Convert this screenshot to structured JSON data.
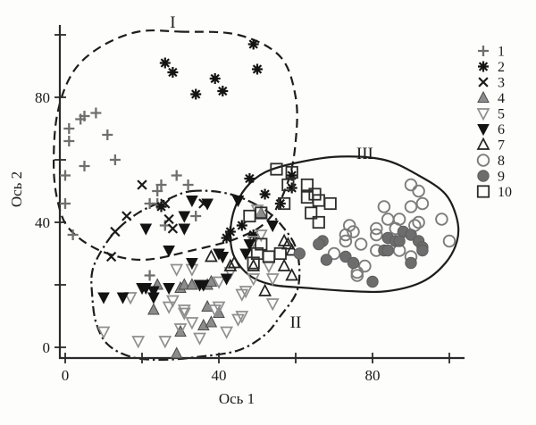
{
  "chart_data": {
    "type": "scatter",
    "title": "",
    "xlabel": "Ось 1",
    "ylabel": "Ось 2",
    "xlim": [
      -1.5,
      105
    ],
    "ylim": [
      -4,
      106
    ],
    "grid": false,
    "legend_position": "right-outside",
    "x_ticks": {
      "major": [
        0,
        40,
        80
      ],
      "minor": [
        20,
        60,
        100
      ]
    },
    "y_ticks": {
      "major": [
        0,
        40,
        80
      ],
      "minor": [
        20,
        60,
        100
      ]
    },
    "series": [
      {
        "name": "1",
        "marker": "plus",
        "color": "#6f6f6f",
        "points": [
          [
            4,
            73
          ],
          [
            5,
            74
          ],
          [
            8,
            75
          ],
          [
            1,
            70
          ],
          [
            1,
            66
          ],
          [
            11,
            68
          ],
          [
            13,
            60
          ],
          [
            5,
            58
          ],
          [
            0,
            55
          ],
          [
            0,
            46
          ],
          [
            2,
            36
          ],
          [
            25,
            52
          ],
          [
            24,
            50
          ],
          [
            29,
            55
          ],
          [
            32,
            52
          ],
          [
            22,
            46
          ],
          [
            26,
            39
          ],
          [
            34,
            42
          ],
          [
            22,
            23
          ],
          [
            24,
            46
          ]
        ]
      },
      {
        "name": "2",
        "marker": "asterisk",
        "color": "#141414",
        "points": [
          [
            49,
            97
          ],
          [
            26,
            91
          ],
          [
            28,
            88
          ],
          [
            39,
            86
          ],
          [
            34,
            81
          ],
          [
            41,
            82
          ],
          [
            50,
            89
          ],
          [
            25,
            45
          ],
          [
            48,
            54
          ],
          [
            52,
            49
          ],
          [
            59,
            55
          ],
          [
            59,
            51
          ],
          [
            56,
            46
          ],
          [
            46,
            39
          ],
          [
            49,
            36
          ],
          [
            43,
            37
          ],
          [
            42,
            35
          ]
        ]
      },
      {
        "name": "3",
        "marker": "x",
        "color": "#1a1a1a",
        "points": [
          [
            20,
            52
          ],
          [
            16,
            42
          ],
          [
            13,
            37
          ],
          [
            26,
            46
          ],
          [
            27,
            41
          ],
          [
            28,
            38
          ],
          [
            12,
            29
          ],
          [
            36,
            46
          ]
        ]
      },
      {
        "name": "4",
        "marker": "triangle-up-filled",
        "color": "#8c8c8c",
        "points": [
          [
            24,
            20
          ],
          [
            30,
            19
          ],
          [
            31,
            20
          ],
          [
            33,
            20
          ],
          [
            37,
            20
          ],
          [
            38,
            21
          ],
          [
            23,
            12
          ],
          [
            37,
            13
          ],
          [
            40,
            11
          ],
          [
            36,
            7
          ],
          [
            38,
            8
          ],
          [
            30,
            5
          ],
          [
            29,
            -2
          ],
          [
            51,
            43
          ]
        ]
      },
      {
        "name": "5",
        "marker": "triangle-down-open",
        "color": "#8f8f8f",
        "points": [
          [
            29,
            25
          ],
          [
            33,
            25
          ],
          [
            40,
            21
          ],
          [
            43,
            24
          ],
          [
            47,
            18
          ],
          [
            46,
            17
          ],
          [
            17,
            16
          ],
          [
            28,
            15
          ],
          [
            31,
            12
          ],
          [
            40,
            13
          ],
          [
            46,
            10
          ],
          [
            30,
            6
          ],
          [
            35,
            3
          ],
          [
            26,
            2
          ],
          [
            10,
            5
          ],
          [
            27,
            13
          ],
          [
            33,
            8
          ],
          [
            39,
            12
          ],
          [
            42,
            5
          ],
          [
            19,
            2
          ],
          [
            49,
            22
          ],
          [
            54,
            22
          ],
          [
            54,
            14
          ],
          [
            45,
            9
          ],
          [
            31,
            11
          ],
          [
            50,
            44
          ],
          [
            51,
            36
          ],
          [
            49,
            34
          ],
          [
            53,
            26
          ]
        ]
      },
      {
        "name": "6",
        "marker": "triangle-down-filled",
        "color": "#131313",
        "points": [
          [
            33,
            47
          ],
          [
            37,
            46
          ],
          [
            31,
            42
          ],
          [
            31,
            38
          ],
          [
            21,
            38
          ],
          [
            27,
            31
          ],
          [
            40,
            30
          ],
          [
            41,
            29
          ],
          [
            33,
            27
          ],
          [
            42,
            22
          ],
          [
            20,
            19
          ],
          [
            21,
            19
          ],
          [
            23,
            18
          ],
          [
            23,
            16
          ],
          [
            15,
            16
          ],
          [
            27,
            19
          ],
          [
            35,
            20
          ],
          [
            36,
            20
          ],
          [
            45,
            47
          ],
          [
            54,
            39
          ],
          [
            48,
            33
          ],
          [
            47,
            30
          ],
          [
            10,
            16
          ]
        ]
      },
      {
        "name": "7",
        "marker": "triangle-up-open",
        "color": "#222222",
        "points": [
          [
            38,
            29
          ],
          [
            44,
            27
          ],
          [
            57,
            34
          ],
          [
            59,
            31
          ],
          [
            58,
            33
          ],
          [
            59,
            23
          ],
          [
            52,
            18
          ],
          [
            43,
            26
          ],
          [
            49,
            26
          ],
          [
            57,
            26
          ]
        ]
      },
      {
        "name": "8",
        "marker": "circle-open",
        "color": "#7c7c7c",
        "points": [
          [
            90,
            52
          ],
          [
            92,
            50
          ],
          [
            90,
            45
          ],
          [
            93,
            46
          ],
          [
            83,
            45
          ],
          [
            84,
            41
          ],
          [
            87,
            41
          ],
          [
            91,
            39
          ],
          [
            92,
            40
          ],
          [
            98,
            41
          ],
          [
            81,
            38
          ],
          [
            81,
            36
          ],
          [
            86,
            38
          ],
          [
            74,
            39
          ],
          [
            73,
            36
          ],
          [
            75,
            37
          ],
          [
            73,
            34
          ],
          [
            77,
            33
          ],
          [
            70,
            30
          ],
          [
            81,
            31
          ],
          [
            87,
            31
          ],
          [
            100,
            34
          ],
          [
            90,
            29
          ],
          [
            78,
            26
          ],
          [
            76,
            24
          ],
          [
            76,
            23
          ]
        ]
      },
      {
        "name": "9",
        "marker": "circle-filled",
        "color": "#6d6d6d",
        "points": [
          [
            67,
            34
          ],
          [
            88,
            37
          ],
          [
            90,
            36
          ],
          [
            84,
            35
          ],
          [
            86,
            34
          ],
          [
            87,
            34
          ],
          [
            83,
            31
          ],
          [
            84,
            31
          ],
          [
            92,
            34
          ],
          [
            93,
            32
          ],
          [
            93,
            31
          ],
          [
            73,
            29
          ],
          [
            75,
            27
          ],
          [
            90,
            27
          ],
          [
            80,
            21
          ],
          [
            66,
            33
          ],
          [
            61,
            30
          ],
          [
            68,
            28
          ]
        ]
      },
      {
        "name": "10",
        "marker": "square-open",
        "color": "#2e2e2e",
        "points": [
          [
            55,
            57
          ],
          [
            58,
            52
          ],
          [
            63,
            52
          ],
          [
            65,
            49
          ],
          [
            57,
            46
          ],
          [
            63,
            48
          ],
          [
            66,
            47
          ],
          [
            64,
            43
          ],
          [
            66,
            40
          ],
          [
            48,
            42
          ],
          [
            51,
            33
          ],
          [
            50,
            30
          ],
          [
            56,
            30
          ],
          [
            69,
            46
          ],
          [
            53,
            29
          ],
          [
            49,
            27
          ],
          [
            51,
            43
          ],
          [
            59,
            56
          ]
        ]
      }
    ],
    "regions": [
      {
        "label": "I",
        "line_style": "dashed",
        "label_pos": [
          28,
          104
        ],
        "outline": [
          [
            30,
            101
          ],
          [
            45,
            100
          ],
          [
            56,
            93
          ],
          [
            60,
            80
          ],
          [
            60,
            66
          ],
          [
            58,
            53
          ],
          [
            53,
            41
          ],
          [
            45,
            35
          ],
          [
            33,
            31
          ],
          [
            20,
            28
          ],
          [
            9,
            31
          ],
          [
            1,
            38
          ],
          [
            -2,
            47
          ],
          [
            -3,
            59
          ],
          [
            -2,
            75
          ],
          [
            2,
            88
          ],
          [
            9,
            96
          ],
          [
            19,
            101
          ]
        ]
      },
      {
        "label": "II",
        "line_style": "dash-dot",
        "label_pos": [
          60,
          8
        ],
        "outline": [
          [
            33,
            50
          ],
          [
            43,
            49
          ],
          [
            52,
            44
          ],
          [
            57,
            38
          ],
          [
            60,
            32
          ],
          [
            61,
            24
          ],
          [
            60,
            17
          ],
          [
            56,
            10
          ],
          [
            52,
            4
          ],
          [
            45,
            -1
          ],
          [
            35,
            -3
          ],
          [
            25,
            -4
          ],
          [
            17,
            -3
          ],
          [
            11,
            1
          ],
          [
            8,
            8
          ],
          [
            7,
            17
          ],
          [
            7,
            24
          ],
          [
            9,
            30
          ],
          [
            13,
            37
          ],
          [
            19,
            43
          ],
          [
            26,
            47
          ]
        ]
      },
      {
        "label": "III",
        "line_style": "solid",
        "label_pos": [
          78,
          62
        ],
        "outline": [
          [
            60,
            59
          ],
          [
            71,
            61
          ],
          [
            83,
            60
          ],
          [
            92,
            55
          ],
          [
            99,
            49
          ],
          [
            102,
            41
          ],
          [
            102,
            34
          ],
          [
            99,
            27
          ],
          [
            93,
            21
          ],
          [
            84,
            18
          ],
          [
            74,
            18
          ],
          [
            63,
            19
          ],
          [
            54,
            20
          ],
          [
            48,
            23
          ],
          [
            44,
            29
          ],
          [
            43,
            36
          ],
          [
            44,
            44
          ],
          [
            47,
            51
          ],
          [
            52,
            56
          ]
        ]
      }
    ],
    "legend": {
      "items": [
        {
          "label": "1",
          "marker": "plus"
        },
        {
          "label": "2",
          "marker": "asterisk"
        },
        {
          "label": "3",
          "marker": "x"
        },
        {
          "label": "4",
          "marker": "triangle-up-filled"
        },
        {
          "label": "5",
          "marker": "triangle-down-open"
        },
        {
          "label": "6",
          "marker": "triangle-down-filled"
        },
        {
          "label": "7",
          "marker": "triangle-up-open"
        },
        {
          "label": "8",
          "marker": "circle-open"
        },
        {
          "label": "9",
          "marker": "circle-filled"
        },
        {
          "label": "10",
          "marker": "square-open"
        }
      ]
    }
  }
}
